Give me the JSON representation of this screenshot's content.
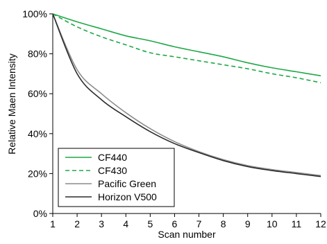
{
  "chart_data": {
    "type": "line",
    "xlabel": "Scan number",
    "ylabel": "Relative Maen Intensity",
    "xlim": [
      1,
      12
    ],
    "ylim": [
      0,
      100
    ],
    "x_ticks": [
      "1",
      "2",
      "3",
      "4",
      "5",
      "6",
      "7",
      "8",
      "9",
      "10",
      "11",
      "12"
    ],
    "y_ticks": [
      "0%",
      "20%",
      "40%",
      "60%",
      "80%",
      "100%"
    ],
    "y_tick_values": [
      0,
      20,
      40,
      60,
      80,
      100
    ],
    "grid": false,
    "legend_position": "bottom-left",
    "x": [
      1,
      2,
      3,
      4,
      5,
      6,
      7,
      8,
      9,
      10,
      11,
      12
    ],
    "series": [
      {
        "name": "CF440",
        "values": [
          100,
          96,
          92.5,
          89,
          86.5,
          83.5,
          81,
          78.5,
          75.5,
          73,
          71,
          69
        ],
        "color": "#1fa846",
        "style": "solid"
      },
      {
        "name": "CF430",
        "values": [
          100,
          93.5,
          88.5,
          84.5,
          80.5,
          78.5,
          76.5,
          74.5,
          72.5,
          70,
          68,
          65.5
        ],
        "color": "#1fa846",
        "style": "dashed"
      },
      {
        "name": "Pacific Green",
        "values": [
          100,
          72,
          60,
          50.5,
          42.5,
          36,
          31,
          27,
          24,
          22,
          20.5,
          19
        ],
        "color": "#8c8c8c",
        "style": "solid"
      },
      {
        "name": "Horizon V500",
        "values": [
          100,
          70,
          57,
          48.5,
          41,
          35,
          30.5,
          26.5,
          23.5,
          21.5,
          20,
          18.5
        ],
        "color": "#2b2b2b",
        "style": "solid"
      }
    ]
  }
}
